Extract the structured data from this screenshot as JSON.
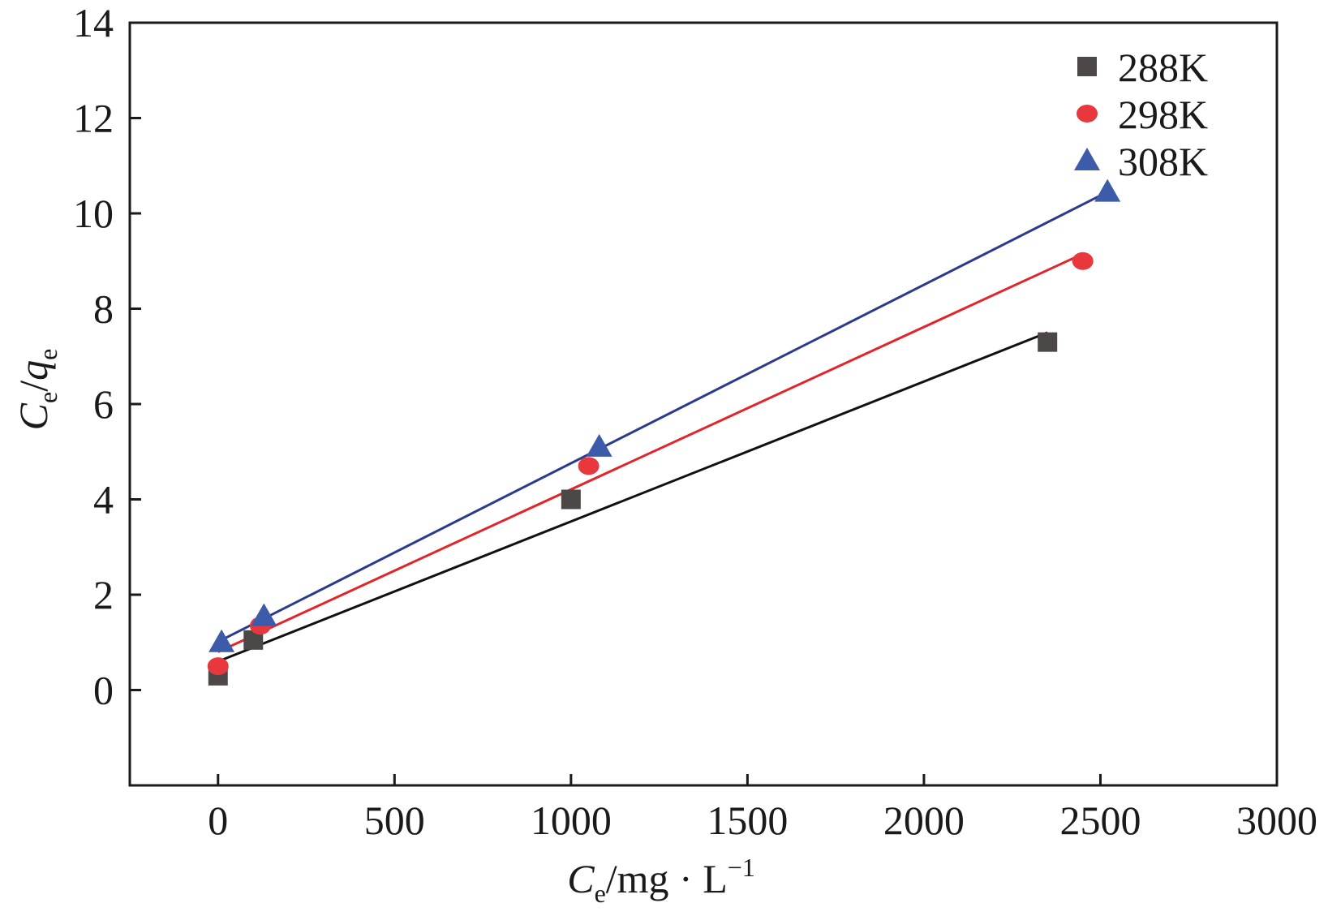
{
  "chart_data": {
    "type": "scatter",
    "x_axis": {
      "range": [
        -250,
        3000
      ],
      "ticks": [
        0,
        500,
        1000,
        1500,
        2000,
        2500,
        3000
      ],
      "tick_labels": [
        "0",
        "500",
        "1000",
        "1500",
        "2000",
        "2500",
        "3000"
      ],
      "label_main": "C",
      "label_sub": "e",
      "label_rest": "/mg · L",
      "label_sup": "−1"
    },
    "y_axis": {
      "range": [
        -2,
        14
      ],
      "ticks": [
        0,
        2,
        4,
        6,
        8,
        10,
        12,
        14
      ],
      "tick_labels": [
        "0",
        "2",
        "4",
        "6",
        "8",
        "10",
        "12",
        "14"
      ],
      "label_c": "C",
      "label_sub1": "e",
      "label_slash": "/",
      "label_q": "q",
      "label_sub2": "e"
    },
    "grid": false,
    "legend_position": "top-right",
    "series": [
      {
        "name": "288K",
        "marker": "square",
        "color": "#4d4848",
        "line_color": "#111111",
        "points": [
          [
            0,
            0.3
          ],
          [
            100,
            1.05
          ],
          [
            1000,
            4.0
          ],
          [
            2350,
            7.3
          ]
        ],
        "fit": [
          [
            0,
            0.6
          ],
          [
            2350,
            7.5
          ]
        ]
      },
      {
        "name": "298K",
        "marker": "circle",
        "color": "#e8383d",
        "line_color": "#e0252b",
        "points": [
          [
            0,
            0.5
          ],
          [
            120,
            1.35
          ],
          [
            1050,
            4.7
          ],
          [
            2450,
            9.0
          ]
        ],
        "fit": [
          [
            0,
            0.8
          ],
          [
            2450,
            9.15
          ]
        ]
      },
      {
        "name": "308K",
        "marker": "triangle",
        "color": "#3c5ba8",
        "line_color": "#2b3a8c",
        "points": [
          [
            10,
            1.0
          ],
          [
            130,
            1.55
          ],
          [
            1080,
            5.1
          ],
          [
            2520,
            10.45
          ]
        ],
        "fit": [
          [
            10,
            1.05
          ],
          [
            2520,
            10.45
          ]
        ]
      }
    ]
  }
}
